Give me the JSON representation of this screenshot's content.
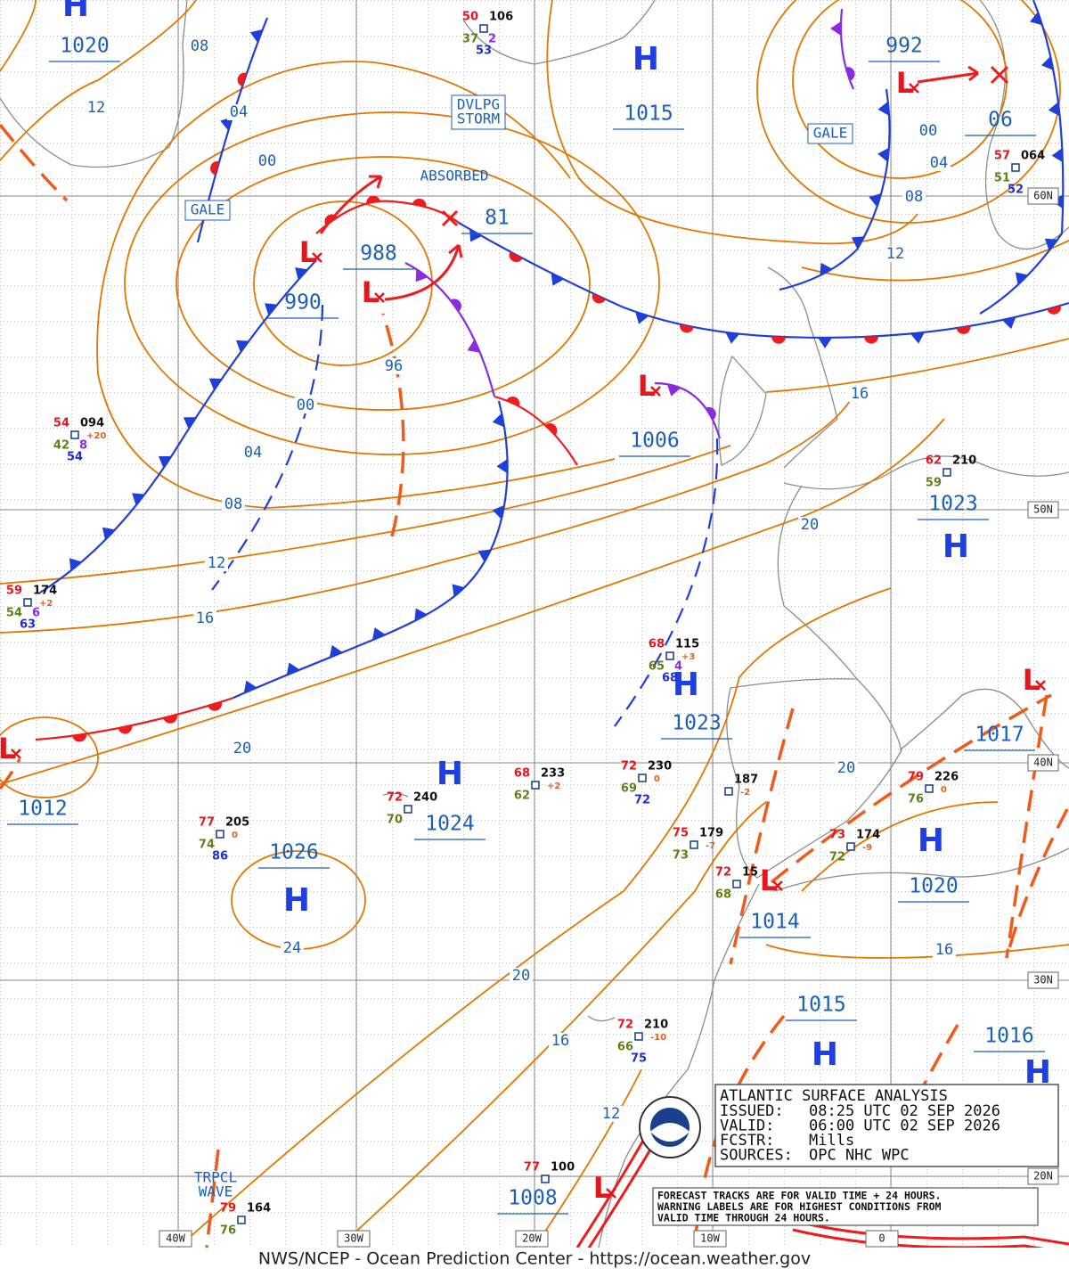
{
  "map": {
    "lat_labels": [
      "60N",
      "50N",
      "40N",
      "30N",
      "20N"
    ],
    "lon_labels": [
      "40W",
      "30W",
      "20W",
      "10W",
      "0"
    ],
    "highs": [
      {
        "symbol": "H",
        "pressure": "1020"
      },
      {
        "symbol": "H",
        "pressure": "1015"
      },
      {
        "symbol": "H",
        "pressure": "1023"
      },
      {
        "symbol": "H",
        "pressure": "1023"
      },
      {
        "symbol": "H",
        "pressure": "1024"
      },
      {
        "symbol": "H",
        "pressure": "1026"
      },
      {
        "symbol": "H",
        "pressure": "1020"
      },
      {
        "symbol": "H",
        "pressure": "1015"
      },
      {
        "symbol": "H",
        "pressure": "1016"
      }
    ],
    "lows": [
      {
        "symbol": "L",
        "pressure": "990"
      },
      {
        "symbol": "L",
        "pressure": "988"
      },
      {
        "symbol": "L",
        "pressure": "1006"
      },
      {
        "symbol": "L",
        "pressure": "992"
      },
      {
        "symbol": "L",
        "pressure": "1012"
      },
      {
        "symbol": "L",
        "pressure": "1014"
      },
      {
        "symbol": "L",
        "pressure": "1017"
      },
      {
        "symbol": "L",
        "pressure": "1008"
      }
    ],
    "pressure_labels": [
      "81",
      "06"
    ],
    "isobar_labels": [
      "08",
      "12",
      "04",
      "00",
      "96",
      "00",
      "04",
      "08",
      "12",
      "16",
      "20",
      "24",
      "20",
      "16",
      "12",
      "00",
      "04",
      "08",
      "12",
      "16",
      "20",
      "20",
      "16"
    ],
    "annotations": [
      [
        "GALE"
      ],
      [
        "DVLPG",
        "STORM"
      ],
      [
        "ABSORBED"
      ],
      [
        "GALE"
      ],
      [
        "TRPCL",
        "WAVE"
      ]
    ],
    "stations": [
      {
        "temp": "50",
        "pressure": "106",
        "dewpoint": "37",
        "wave": "2",
        "sst": "53"
      },
      {
        "temp": "54",
        "pressure": "094",
        "dewpoint": "42",
        "wave": "8",
        "tendency": "+20",
        "sst": "54"
      },
      {
        "temp": "59",
        "pressure": "174",
        "dewpoint": "54",
        "wave": "6",
        "tendency": "+2",
        "sst": "63"
      },
      {
        "temp": "68",
        "pressure": "115",
        "dewpoint": "65",
        "wave": "4",
        "tendency": "+3",
        "sst": "68"
      },
      {
        "temp": "68",
        "pressure": "233",
        "dewpoint": "62",
        "tendency": "+2"
      },
      {
        "temp": "72",
        "pressure": "240",
        "dewpoint": "70"
      },
      {
        "temp": "77",
        "pressure": "205",
        "dewpoint": "74",
        "tendency": "0",
        "sst": "86"
      },
      {
        "temp": "72",
        "pressure": "230",
        "dewpoint": "69",
        "tendency": "0",
        "sst": "72"
      },
      {
        "pressure": "187",
        "tendency": "-2"
      },
      {
        "temp": "75",
        "pressure": "179",
        "dewpoint": "73",
        "tendency": "-7"
      },
      {
        "temp": "72",
        "pressure": "15",
        "dewpoint": "68"
      },
      {
        "temp": "73",
        "pressure": "174",
        "dewpoint": "72",
        "tendency": "-9"
      },
      {
        "temp": "79",
        "pressure": "226",
        "dewpoint": "76",
        "tendency": "0"
      },
      {
        "temp": "62",
        "pressure": "210",
        "dewpoint": "59"
      },
      {
        "temp": "57",
        "pressure": "064",
        "dewpoint": "51",
        "sst": "52"
      },
      {
        "temp": "72",
        "pressure": "210",
        "dewpoint": "66",
        "tendency": "-10",
        "sst": "75"
      },
      {
        "temp": "77",
        "pressure": "100"
      },
      {
        "temp": "79",
        "pressure": "164",
        "dewpoint": "76"
      }
    ]
  },
  "analysis_box": {
    "title": "ATLANTIC SURFACE ANALYSIS",
    "rows": [
      [
        "ISSUED:",
        "08:25 UTC 02 SEP 2026"
      ],
      [
        "VALID:",
        "06:00 UTC 02 SEP 2026"
      ],
      [
        "FCSTR:",
        "Mills"
      ],
      [
        "SOURCES:",
        "OPC NHC WPC"
      ]
    ]
  },
  "forecast_note": [
    "FORECAST TRACKS ARE FOR VALID TIME + 24 HOURS.",
    "WARNING LABELS ARE FOR HIGHEST CONDITIONS FROM",
    "VALID TIME THROUGH 24 HOURS."
  ],
  "footer": "NWS/NCEP - Ocean Prediction Center - https://ocean.weather.gov"
}
